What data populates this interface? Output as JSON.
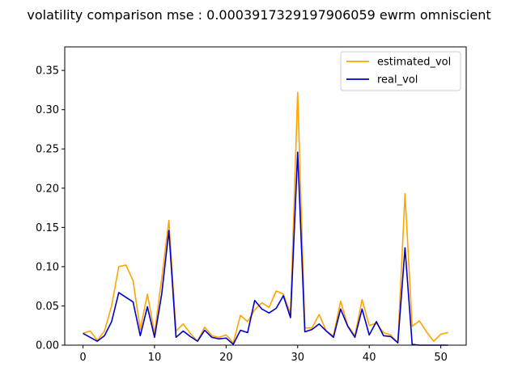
{
  "chart_data": {
    "type": "line",
    "title": "volatility comparison mse : 0.0003917329197906059 ewrm omniscient",
    "xlabel": "",
    "ylabel": "",
    "xlim": [
      -2.55,
      53.55
    ],
    "ylim": [
      0,
      0.38
    ],
    "x_ticks": [
      0,
      10,
      20,
      30,
      40,
      50
    ],
    "x_tick_labels": [
      "0",
      "10",
      "20",
      "30",
      "40",
      "50"
    ],
    "y_ticks": [
      0,
      0.05,
      0.1,
      0.15,
      0.2,
      0.25,
      0.3,
      0.35
    ],
    "y_tick_labels": [
      "0.00",
      "0.05",
      "0.10",
      "0.15",
      "0.20",
      "0.25",
      "0.30",
      "0.35"
    ],
    "grid": false,
    "legend_position": "top-right",
    "x": [
      0,
      1,
      2,
      3,
      4,
      5,
      6,
      7,
      8,
      9,
      10,
      11,
      12,
      13,
      14,
      15,
      16,
      17,
      18,
      19,
      20,
      21,
      22,
      23,
      24,
      25,
      26,
      27,
      28,
      29,
      30,
      31,
      32,
      33,
      34,
      35,
      36,
      37,
      38,
      39,
      40,
      41,
      42,
      43,
      44,
      45,
      46,
      47,
      48,
      49,
      50,
      51
    ],
    "series": [
      {
        "name": "estimated_vol",
        "color": "#ffa500",
        "values": [
          0.015,
          0.018,
          0.006,
          0.018,
          0.05,
          0.1,
          0.102,
          0.082,
          0.02,
          0.065,
          0.015,
          0.085,
          0.159,
          0.018,
          0.027,
          0.015,
          0.005,
          0.023,
          0.012,
          0.01,
          0.013,
          0.003,
          0.038,
          0.03,
          0.045,
          0.054,
          0.048,
          0.069,
          0.065,
          0.04,
          0.322,
          0.022,
          0.022,
          0.039,
          0.018,
          0.012,
          0.056,
          0.025,
          0.012,
          0.058,
          0.025,
          0.028,
          0.016,
          0.013,
          0.003,
          0.193,
          0.024,
          0.031,
          0.017,
          0.005,
          0.014,
          0.016
        ]
      },
      {
        "name": "real_vol",
        "color": "#0000cd",
        "values": [
          0.015,
          0.01,
          0.005,
          0.012,
          0.03,
          0.067,
          0.061,
          0.055,
          0.012,
          0.049,
          0.01,
          0.065,
          0.146,
          0.01,
          0.018,
          0.011,
          0.005,
          0.019,
          0.01,
          0.008,
          0.009,
          0.001,
          0.019,
          0.016,
          0.057,
          0.046,
          0.041,
          0.047,
          0.063,
          0.035,
          0.246,
          0.017,
          0.02,
          0.027,
          0.018,
          0.01,
          0.046,
          0.024,
          0.01,
          0.046,
          0.013,
          0.03,
          0.012,
          0.011,
          0.003,
          0.124,
          0.001,
          0.0,
          0.0,
          0.0,
          0.0,
          0.0
        ]
      }
    ]
  }
}
